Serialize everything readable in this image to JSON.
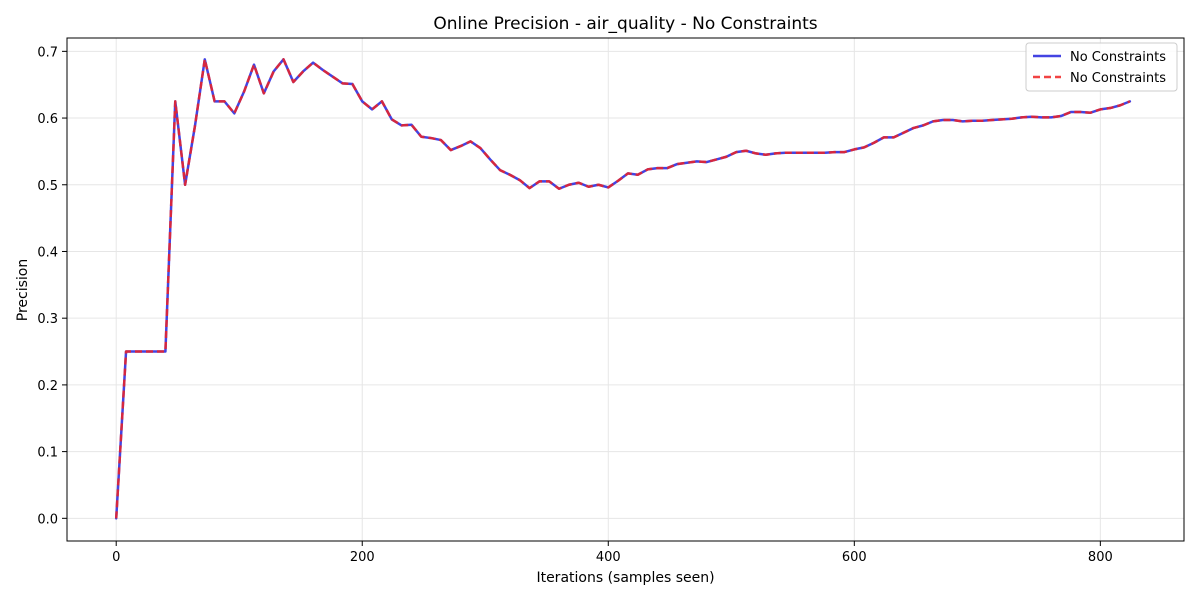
{
  "chart_data": {
    "type": "line",
    "title": "Online Precision - air_quality - No Constraints",
    "xlabel": "Iterations (samples seen)",
    "ylabel": "Precision",
    "xlim": [
      -40,
      868
    ],
    "ylim": [
      -0.034,
      0.72
    ],
    "xticks": [
      0,
      200,
      400,
      600,
      800
    ],
    "yticks": [
      0.0,
      0.1,
      0.2,
      0.3,
      0.4,
      0.5,
      0.6,
      0.7
    ],
    "xtick_labels": [
      "0",
      "200",
      "400",
      "600",
      "800"
    ],
    "ytick_labels": [
      "0.0",
      "0.1",
      "0.2",
      "0.3",
      "0.4",
      "0.5",
      "0.6",
      "0.7"
    ],
    "grid": true,
    "legend_position": "top-right",
    "x": [
      0,
      8,
      16,
      24,
      32,
      40,
      48,
      56,
      64,
      72,
      80,
      88,
      96,
      104,
      112,
      120,
      128,
      136,
      144,
      152,
      160,
      168,
      176,
      184,
      192,
      200,
      208,
      216,
      224,
      232,
      240,
      248,
      256,
      264,
      272,
      280,
      288,
      296,
      304,
      312,
      320,
      328,
      336,
      344,
      352,
      360,
      368,
      376,
      384,
      392,
      400,
      408,
      416,
      424,
      432,
      440,
      448,
      456,
      464,
      472,
      480,
      488,
      496,
      504,
      512,
      520,
      528,
      536,
      544,
      552,
      560,
      568,
      576,
      584,
      592,
      600,
      608,
      616,
      624,
      632,
      640,
      648,
      656,
      664,
      672,
      680,
      688,
      696,
      704,
      712,
      720,
      728,
      736,
      744,
      752,
      760,
      768,
      776,
      784,
      792,
      800,
      808,
      816,
      824
    ],
    "series": [
      {
        "name": "No Constraints",
        "color": "#2222dd",
        "style": "solid",
        "values": [
          0.0,
          0.25,
          0.25,
          0.25,
          0.25,
          0.25,
          0.625,
          0.5,
          0.588,
          0.688,
          0.625,
          0.625,
          0.607,
          0.64,
          0.68,
          0.637,
          0.67,
          0.688,
          0.654,
          0.67,
          0.683,
          0.672,
          0.662,
          0.652,
          0.651,
          0.625,
          0.613,
          0.625,
          0.598,
          0.589,
          0.59,
          0.572,
          0.57,
          0.567,
          0.552,
          0.558,
          0.565,
          0.555,
          0.538,
          0.522,
          0.515,
          0.507,
          0.495,
          0.505,
          0.505,
          0.494,
          0.5,
          0.503,
          0.497,
          0.5,
          0.496,
          0.506,
          0.517,
          0.515,
          0.523,
          0.525,
          0.525,
          0.531,
          0.533,
          0.535,
          0.534,
          0.538,
          0.542,
          0.549,
          0.551,
          0.547,
          0.545,
          0.547,
          0.548,
          0.548,
          0.548,
          0.548,
          0.548,
          0.549,
          0.549,
          0.553,
          0.556,
          0.563,
          0.571,
          0.571,
          0.578,
          0.585,
          0.589,
          0.595,
          0.597,
          0.597,
          0.595,
          0.596,
          0.596,
          0.597,
          0.598,
          0.599,
          0.601,
          0.602,
          0.601,
          0.601,
          0.603,
          0.609,
          0.609,
          0.608,
          0.613,
          0.615,
          0.619,
          0.625
        ]
      },
      {
        "name": "No Constraints",
        "color": "#ee2222",
        "style": "dashed",
        "values": [
          0.0,
          0.25,
          0.25,
          0.25,
          0.25,
          0.25,
          0.625,
          0.5,
          0.588,
          0.688,
          0.625,
          0.625,
          0.607,
          0.64,
          0.68,
          0.637,
          0.67,
          0.688,
          0.654,
          0.67,
          0.683,
          0.672,
          0.662,
          0.652,
          0.651,
          0.625,
          0.613,
          0.625,
          0.598,
          0.589,
          0.59,
          0.572,
          0.57,
          0.567,
          0.552,
          0.558,
          0.565,
          0.555,
          0.538,
          0.522,
          0.515,
          0.507,
          0.495,
          0.505,
          0.505,
          0.494,
          0.5,
          0.503,
          0.497,
          0.5,
          0.496,
          0.506,
          0.517,
          0.515,
          0.523,
          0.525,
          0.525,
          0.531,
          0.533,
          0.535,
          0.534,
          0.538,
          0.542,
          0.549,
          0.551,
          0.547,
          0.545,
          0.547,
          0.548,
          0.548,
          0.548,
          0.548,
          0.548,
          0.549,
          0.549,
          0.553,
          0.556,
          0.563,
          0.571,
          0.571,
          0.578,
          0.585,
          0.589,
          0.595,
          0.597,
          0.597,
          0.595,
          0.596,
          0.596,
          0.597,
          0.598,
          0.599,
          0.601,
          0.602,
          0.601,
          0.601,
          0.603,
          0.609,
          0.609,
          0.608,
          0.613,
          0.615,
          0.619,
          0.625
        ]
      }
    ]
  }
}
